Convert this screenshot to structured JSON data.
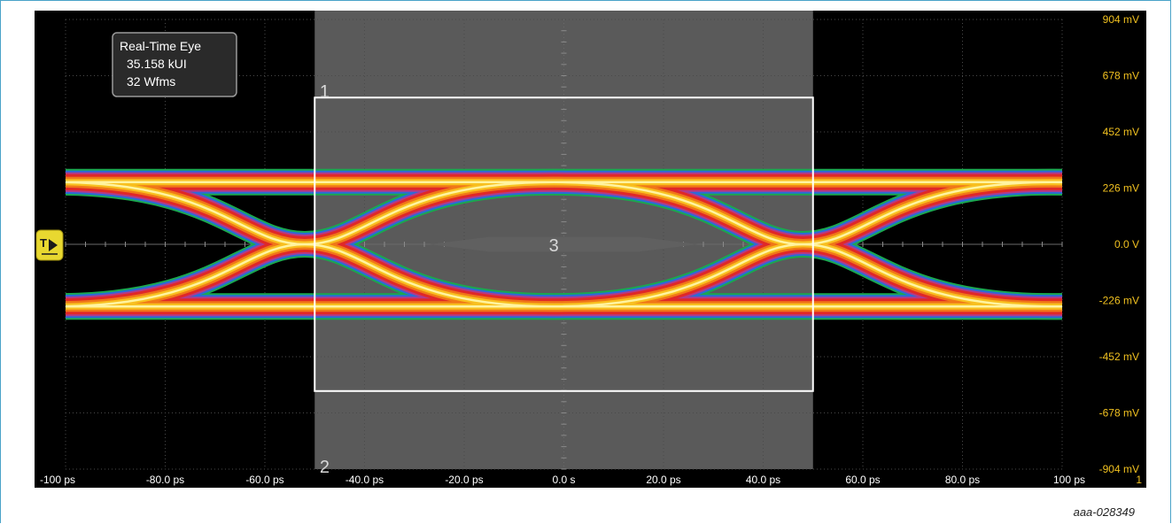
{
  "figure_id": "aaa-028349",
  "colors": {
    "background": "#000000",
    "grid": "#4a4a4a",
    "region_shade": "#5a5a5a",
    "mask_outline": "#ffffff",
    "y_label": "#f0c020",
    "x_label": "#ffffff",
    "trigger_badge": "#e8d830",
    "heat": [
      "#1aa850",
      "#2c6bd8",
      "#b23a8a",
      "#e02828",
      "#f07818",
      "#f8c020",
      "#fff4a0"
    ]
  },
  "info_box": {
    "line1": "Real-Time Eye",
    "line2": "35.158 kUI",
    "line3": "32 Wfms"
  },
  "trigger_icon": "trigger-level-icon",
  "chart_data": {
    "type": "eye-diagram",
    "xlim": [
      -100,
      100
    ],
    "ylim": [
      -904,
      904
    ],
    "x_unit": "ps",
    "y_unit": "mV",
    "x_ticks": [
      -100,
      -80,
      -60,
      -40,
      -20,
      0,
      20,
      40,
      60,
      80,
      100
    ],
    "y_ticks": [
      904,
      678,
      452,
      226,
      0,
      -226,
      -452,
      -678,
      -904
    ],
    "x_tick_labels": [
      "-100 ps",
      "-80.0 ps",
      "-60.0 ps",
      "-40.0 ps",
      "-20.0 ps",
      "0.0 s",
      "20.0 ps",
      "40.0 ps",
      "60.0 ps",
      "80.0 ps",
      "100 ps"
    ],
    "y_tick_labels": [
      "904 mV",
      "678 mV",
      "452 mV",
      "226 mV",
      "0.0 V",
      "-226 mV",
      "-452 mV",
      "-678 mV",
      "-904 mV"
    ],
    "corner_label": "1",
    "logic_levels_mV": [
      250,
      -250
    ],
    "crossings_ps": [
      -52,
      48
    ],
    "shaded_region_ps": [
      -50,
      50
    ],
    "mask_box": {
      "x": [
        -50,
        50
      ],
      "y": [
        590,
        -590
      ]
    },
    "mask_hexagon": {
      "x": [
        -15,
        15
      ],
      "half_height_mV": 30
    },
    "markers": [
      {
        "label": "1",
        "x": -49,
        "y": 620
      },
      {
        "label": "2",
        "x": -49,
        "y": -890
      },
      {
        "label": "3",
        "x": -3,
        "y": 0
      }
    ]
  }
}
